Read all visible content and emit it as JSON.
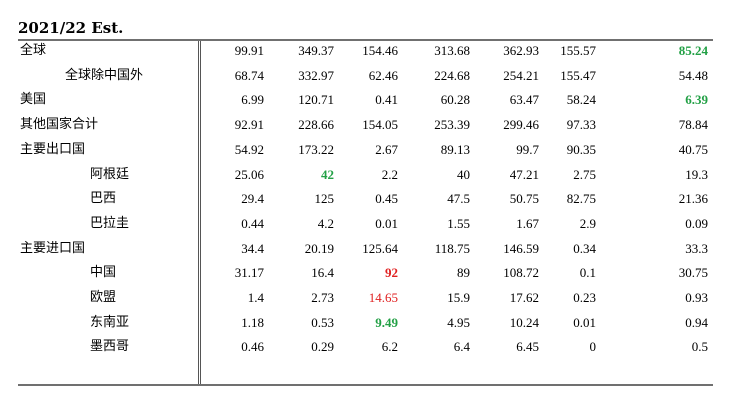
{
  "title": "2021/22 Est.",
  "colors": {
    "green": "#22a045",
    "red": "#e02020"
  },
  "rows": [
    {
      "label": "全球",
      "level": 0,
      "values": [
        "99.91",
        "349.37",
        "154.46",
        "313.68",
        "362.93",
        "155.57",
        "85.24"
      ],
      "styles": [
        "",
        "",
        "",
        "",
        "",
        "",
        "green"
      ]
    },
    {
      "label": "全球除中国外",
      "level": 1,
      "values": [
        "68.74",
        "332.97",
        "62.46",
        "224.68",
        "254.21",
        "155.47",
        "54.48"
      ],
      "styles": [
        "",
        "",
        "",
        "",
        "",
        "",
        ""
      ]
    },
    {
      "label": "美国",
      "level": 0,
      "values": [
        "6.99",
        "120.71",
        "0.41",
        "60.28",
        "63.47",
        "58.24",
        "6.39"
      ],
      "styles": [
        "",
        "",
        "",
        "",
        "",
        "",
        "green"
      ]
    },
    {
      "label": "其他国家合计",
      "level": 0,
      "values": [
        "92.91",
        "228.66",
        "154.05",
        "253.39",
        "299.46",
        "97.33",
        "78.84"
      ],
      "styles": [
        "",
        "",
        "",
        "",
        "",
        "",
        ""
      ]
    },
    {
      "label": "主要出口国",
      "level": 0,
      "values": [
        "54.92",
        "173.22",
        "2.67",
        "89.13",
        "99.7",
        "90.35",
        "40.75"
      ],
      "styles": [
        "",
        "",
        "",
        "",
        "",
        "",
        ""
      ]
    },
    {
      "label": "阿根廷",
      "level": 2,
      "values": [
        "25.06",
        "42",
        "2.2",
        "40",
        "47.21",
        "2.75",
        "19.3"
      ],
      "styles": [
        "",
        "green",
        "",
        "",
        "",
        "",
        ""
      ]
    },
    {
      "label": "巴西",
      "level": 2,
      "values": [
        "29.4",
        "125",
        "0.45",
        "47.5",
        "50.75",
        "82.75",
        "21.36"
      ],
      "styles": [
        "",
        "",
        "",
        "",
        "",
        "",
        ""
      ]
    },
    {
      "label": "巴拉圭",
      "level": 2,
      "values": [
        "0.44",
        "4.2",
        "0.01",
        "1.55",
        "1.67",
        "2.9",
        "0.09"
      ],
      "styles": [
        "",
        "",
        "",
        "",
        "",
        "",
        ""
      ]
    },
    {
      "label": "主要进口国",
      "level": 0,
      "values": [
        "34.4",
        "20.19",
        "125.64",
        "118.75",
        "146.59",
        "0.34",
        "33.3"
      ],
      "styles": [
        "",
        "",
        "",
        "",
        "",
        "",
        ""
      ]
    },
    {
      "label": "中国",
      "level": 2,
      "values": [
        "31.17",
        "16.4",
        "92",
        "89",
        "108.72",
        "0.1",
        "30.75"
      ],
      "styles": [
        "",
        "",
        "red-bold",
        "",
        "",
        "",
        ""
      ]
    },
    {
      "label": "欧盟",
      "level": 2,
      "values": [
        "1.4",
        "2.73",
        "14.65",
        "15.9",
        "17.62",
        "0.23",
        "0.93"
      ],
      "styles": [
        "",
        "",
        "red",
        "",
        "",
        "",
        ""
      ]
    },
    {
      "label": "东南亚",
      "level": 2,
      "values": [
        "1.18",
        "0.53",
        "9.49",
        "4.95",
        "10.24",
        "0.01",
        "0.94"
      ],
      "styles": [
        "",
        "",
        "green",
        "",
        "",
        "",
        ""
      ]
    },
    {
      "label": "墨西哥",
      "level": 2,
      "values": [
        "0.46",
        "0.29",
        "6.2",
        "6.4",
        "6.45",
        "0",
        "0.5"
      ],
      "styles": [
        "",
        "",
        "",
        "",
        "",
        "",
        ""
      ]
    }
  ]
}
